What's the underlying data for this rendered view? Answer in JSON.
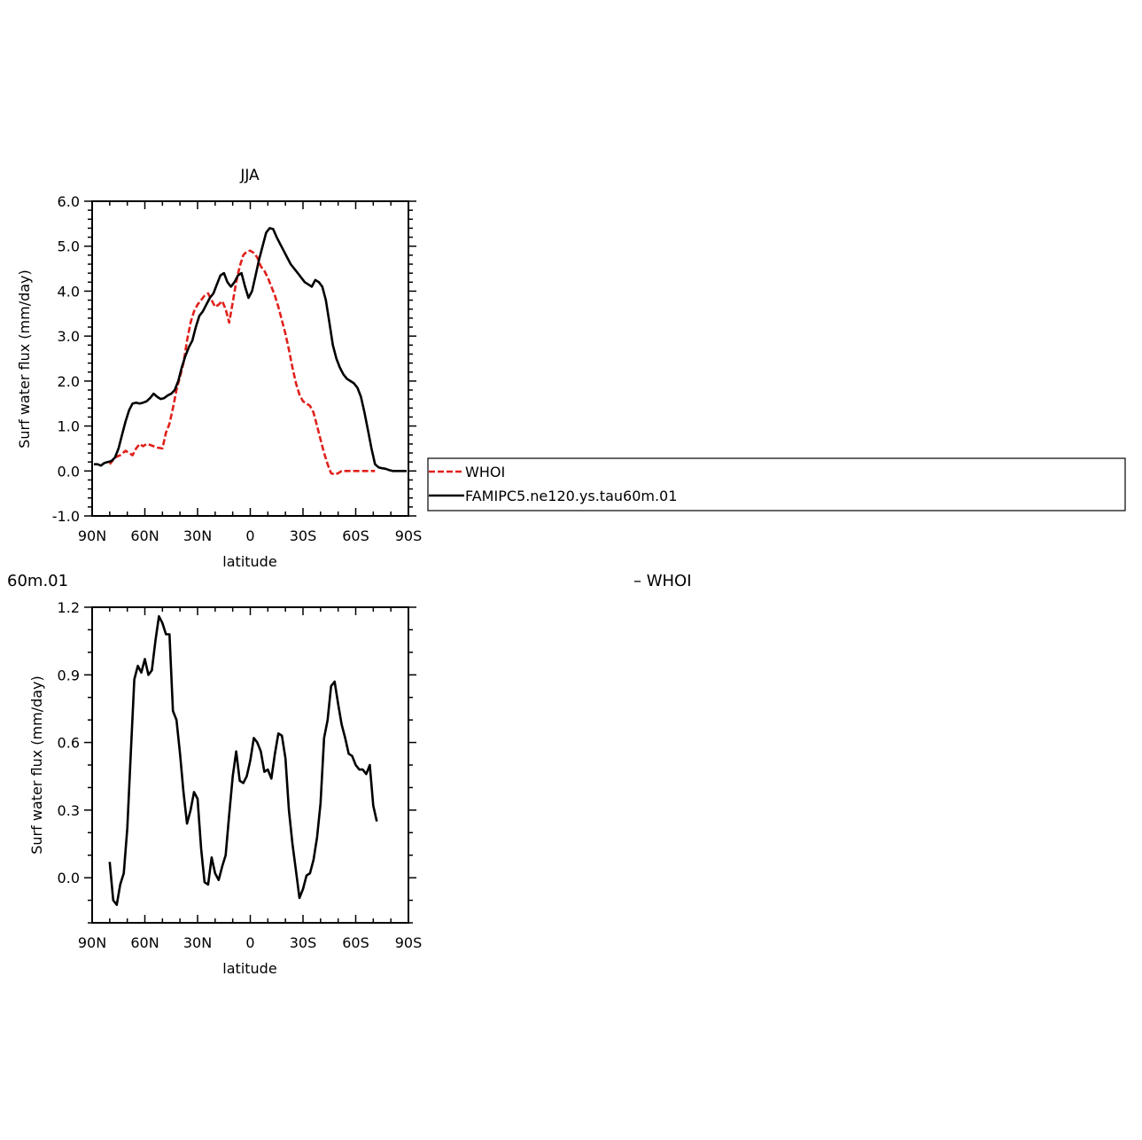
{
  "chart_data": [
    {
      "type": "line",
      "title": "JJA",
      "xlabel": "latitude",
      "ylabel": "Surf water flux (mm/day)",
      "xlim": [
        90,
        -90
      ],
      "ylim": [
        -1.0,
        6.0
      ],
      "x_ticks": [
        90,
        60,
        30,
        0,
        -30,
        -60,
        -90
      ],
      "x_tick_labels": [
        "90N",
        "60N",
        "30N",
        "0",
        "30S",
        "60S",
        "90S"
      ],
      "y_ticks": [
        -1.0,
        0.0,
        1.0,
        2.0,
        3.0,
        4.0,
        5.0,
        6.0
      ],
      "y_tick_labels": [
        "-1.0",
        "0.0",
        "1.0",
        "2.0",
        "3.0",
        "4.0",
        "5.0",
        "6.0"
      ],
      "legend_position": "right",
      "series": [
        {
          "name": "WHOI",
          "color": "#e0201b",
          "dash": "dashed",
          "x": [
            80,
            77,
            74,
            71,
            69,
            67,
            65,
            63,
            61,
            59,
            57,
            55,
            53,
            50,
            48,
            46,
            44,
            42,
            40,
            38,
            36,
            34,
            32,
            30,
            28,
            26,
            24,
            22,
            20,
            18,
            16,
            14,
            12,
            10,
            8,
            6,
            4,
            2,
            0,
            -2,
            -4,
            -6,
            -8,
            -10,
            -12,
            -14,
            -16,
            -18,
            -20,
            -22,
            -24,
            -26,
            -28,
            -30,
            -32,
            -34,
            -36,
            -38,
            -40,
            -42,
            -44,
            -46,
            -48,
            -50,
            -52,
            -54,
            -56,
            -58,
            -60,
            -62,
            -64,
            -66,
            -68,
            -70,
            -71
          ],
          "y": [
            0.15,
            0.3,
            0.35,
            0.45,
            0.4,
            0.35,
            0.5,
            0.6,
            0.55,
            0.6,
            0.58,
            0.55,
            0.52,
            0.5,
            0.85,
            1.05,
            1.4,
            1.8,
            2.1,
            2.4,
            2.9,
            3.3,
            3.55,
            3.7,
            3.8,
            3.9,
            3.95,
            3.8,
            3.65,
            3.7,
            3.78,
            3.6,
            3.3,
            3.75,
            4.2,
            4.55,
            4.8,
            4.88,
            4.9,
            4.85,
            4.75,
            4.55,
            4.45,
            4.3,
            4.1,
            3.9,
            3.65,
            3.35,
            3.05,
            2.7,
            2.3,
            1.95,
            1.7,
            1.55,
            1.5,
            1.45,
            1.3,
            1.0,
            0.7,
            0.4,
            0.15,
            -0.05,
            -0.08,
            -0.05,
            0.0,
            0.0,
            0.0,
            0.0,
            0.0,
            0.0,
            0.0,
            0.0,
            0.0,
            0.0,
            0.0
          ]
        },
        {
          "name": "FAMIPC5.ne120.ys.tau60m.01",
          "color": "#000000",
          "dash": "solid",
          "x": [
            89,
            87,
            85,
            83,
            81,
            79,
            77,
            75,
            73,
            71,
            69,
            67,
            65,
            63,
            61,
            59,
            57,
            55,
            53,
            51,
            49,
            47,
            45,
            43,
            41,
            39,
            37,
            35,
            33,
            31,
            29,
            27,
            25,
            23,
            21,
            19,
            17,
            15,
            13,
            11,
            9,
            7,
            5,
            3,
            1,
            -1,
            -3,
            -5,
            -7,
            -9,
            -11,
            -13,
            -15,
            -17,
            -19,
            -21,
            -23,
            -25,
            -27,
            -29,
            -31,
            -33,
            -35,
            -37,
            -39,
            -41,
            -43,
            -45,
            -47,
            -49,
            -51,
            -53,
            -55,
            -57,
            -59,
            -61,
            -63,
            -65,
            -67,
            -69,
            -71,
            -73,
            -75,
            -77,
            -79,
            -81,
            -83,
            -85,
            -87,
            -89
          ],
          "y": [
            0.15,
            0.15,
            0.12,
            0.18,
            0.2,
            0.22,
            0.3,
            0.5,
            0.8,
            1.1,
            1.35,
            1.5,
            1.52,
            1.5,
            1.52,
            1.55,
            1.62,
            1.72,
            1.65,
            1.6,
            1.62,
            1.68,
            1.72,
            1.8,
            2.0,
            2.3,
            2.55,
            2.75,
            2.9,
            3.2,
            3.45,
            3.55,
            3.7,
            3.85,
            3.95,
            4.15,
            4.35,
            4.4,
            4.2,
            4.1,
            4.2,
            4.35,
            4.4,
            4.1,
            3.85,
            4.0,
            4.35,
            4.7,
            5.0,
            5.3,
            5.4,
            5.38,
            5.2,
            5.05,
            4.9,
            4.75,
            4.6,
            4.5,
            4.4,
            4.3,
            4.2,
            4.15,
            4.1,
            4.25,
            4.2,
            4.1,
            3.8,
            3.3,
            2.8,
            2.5,
            2.3,
            2.15,
            2.05,
            2.0,
            1.95,
            1.85,
            1.65,
            1.3,
            0.9,
            0.5,
            0.15,
            0.08,
            0.06,
            0.05,
            0.02,
            0.0,
            0.0,
            0.0,
            0.0,
            0.0
          ]
        }
      ]
    },
    {
      "type": "line",
      "title": "60m.01",
      "legend_text": "– WHOI",
      "xlabel": "latitude",
      "ylabel": "Surf water flux (mm/day)",
      "xlim": [
        90,
        -90
      ],
      "ylim": [
        -0.2,
        1.2
      ],
      "x_ticks": [
        90,
        60,
        30,
        0,
        -30,
        -60,
        -90
      ],
      "x_tick_labels": [
        "90N",
        "60N",
        "30N",
        "0",
        "30S",
        "60S",
        "90S"
      ],
      "y_ticks": [
        0.0,
        0.3,
        0.6,
        0.9,
        1.2
      ],
      "y_tick_labels": [
        "0.0",
        "0.3",
        "0.6",
        "0.9",
        "1.2"
      ],
      "series": [
        {
          "color": "#000000",
          "dash": "solid",
          "x": [
            80,
            78,
            76,
            74,
            72,
            70,
            68,
            66,
            64,
            62,
            60,
            58,
            56,
            54,
            52,
            50,
            48,
            46,
            44,
            42,
            40,
            38,
            36,
            34,
            32,
            30,
            28,
            26,
            24,
            22,
            20,
            18,
            16,
            14,
            12,
            10,
            8,
            6,
            4,
            2,
            0,
            -2,
            -4,
            -6,
            -8,
            -10,
            -12,
            -14,
            -16,
            -18,
            -20,
            -22,
            -24,
            -26,
            -28,
            -30,
            -32,
            -34,
            -36,
            -38,
            -40,
            -42,
            -44,
            -46,
            -48,
            -50,
            -52,
            -54,
            -56,
            -58,
            -60,
            -62,
            -64,
            -66,
            -68,
            -70,
            -72
          ],
          "y": [
            0.07,
            -0.1,
            -0.12,
            -0.03,
            0.02,
            0.22,
            0.55,
            0.88,
            0.94,
            0.91,
            0.97,
            0.9,
            0.92,
            1.05,
            1.16,
            1.13,
            1.08,
            1.08,
            0.74,
            0.7,
            0.55,
            0.38,
            0.24,
            0.3,
            0.38,
            0.35,
            0.13,
            -0.02,
            -0.03,
            0.09,
            0.02,
            -0.01,
            0.05,
            0.1,
            0.28,
            0.45,
            0.56,
            0.43,
            0.42,
            0.45,
            0.52,
            0.62,
            0.6,
            0.56,
            0.47,
            0.48,
            0.44,
            0.55,
            0.64,
            0.63,
            0.53,
            0.3,
            0.15,
            0.03,
            -0.09,
            -0.05,
            0.01,
            0.02,
            0.08,
            0.18,
            0.33,
            0.62,
            0.7,
            0.85,
            0.87,
            0.77,
            0.68,
            0.62,
            0.55,
            0.54,
            0.5,
            0.48,
            0.48,
            0.46,
            0.5,
            0.32,
            0.25
          ]
        }
      ]
    }
  ]
}
